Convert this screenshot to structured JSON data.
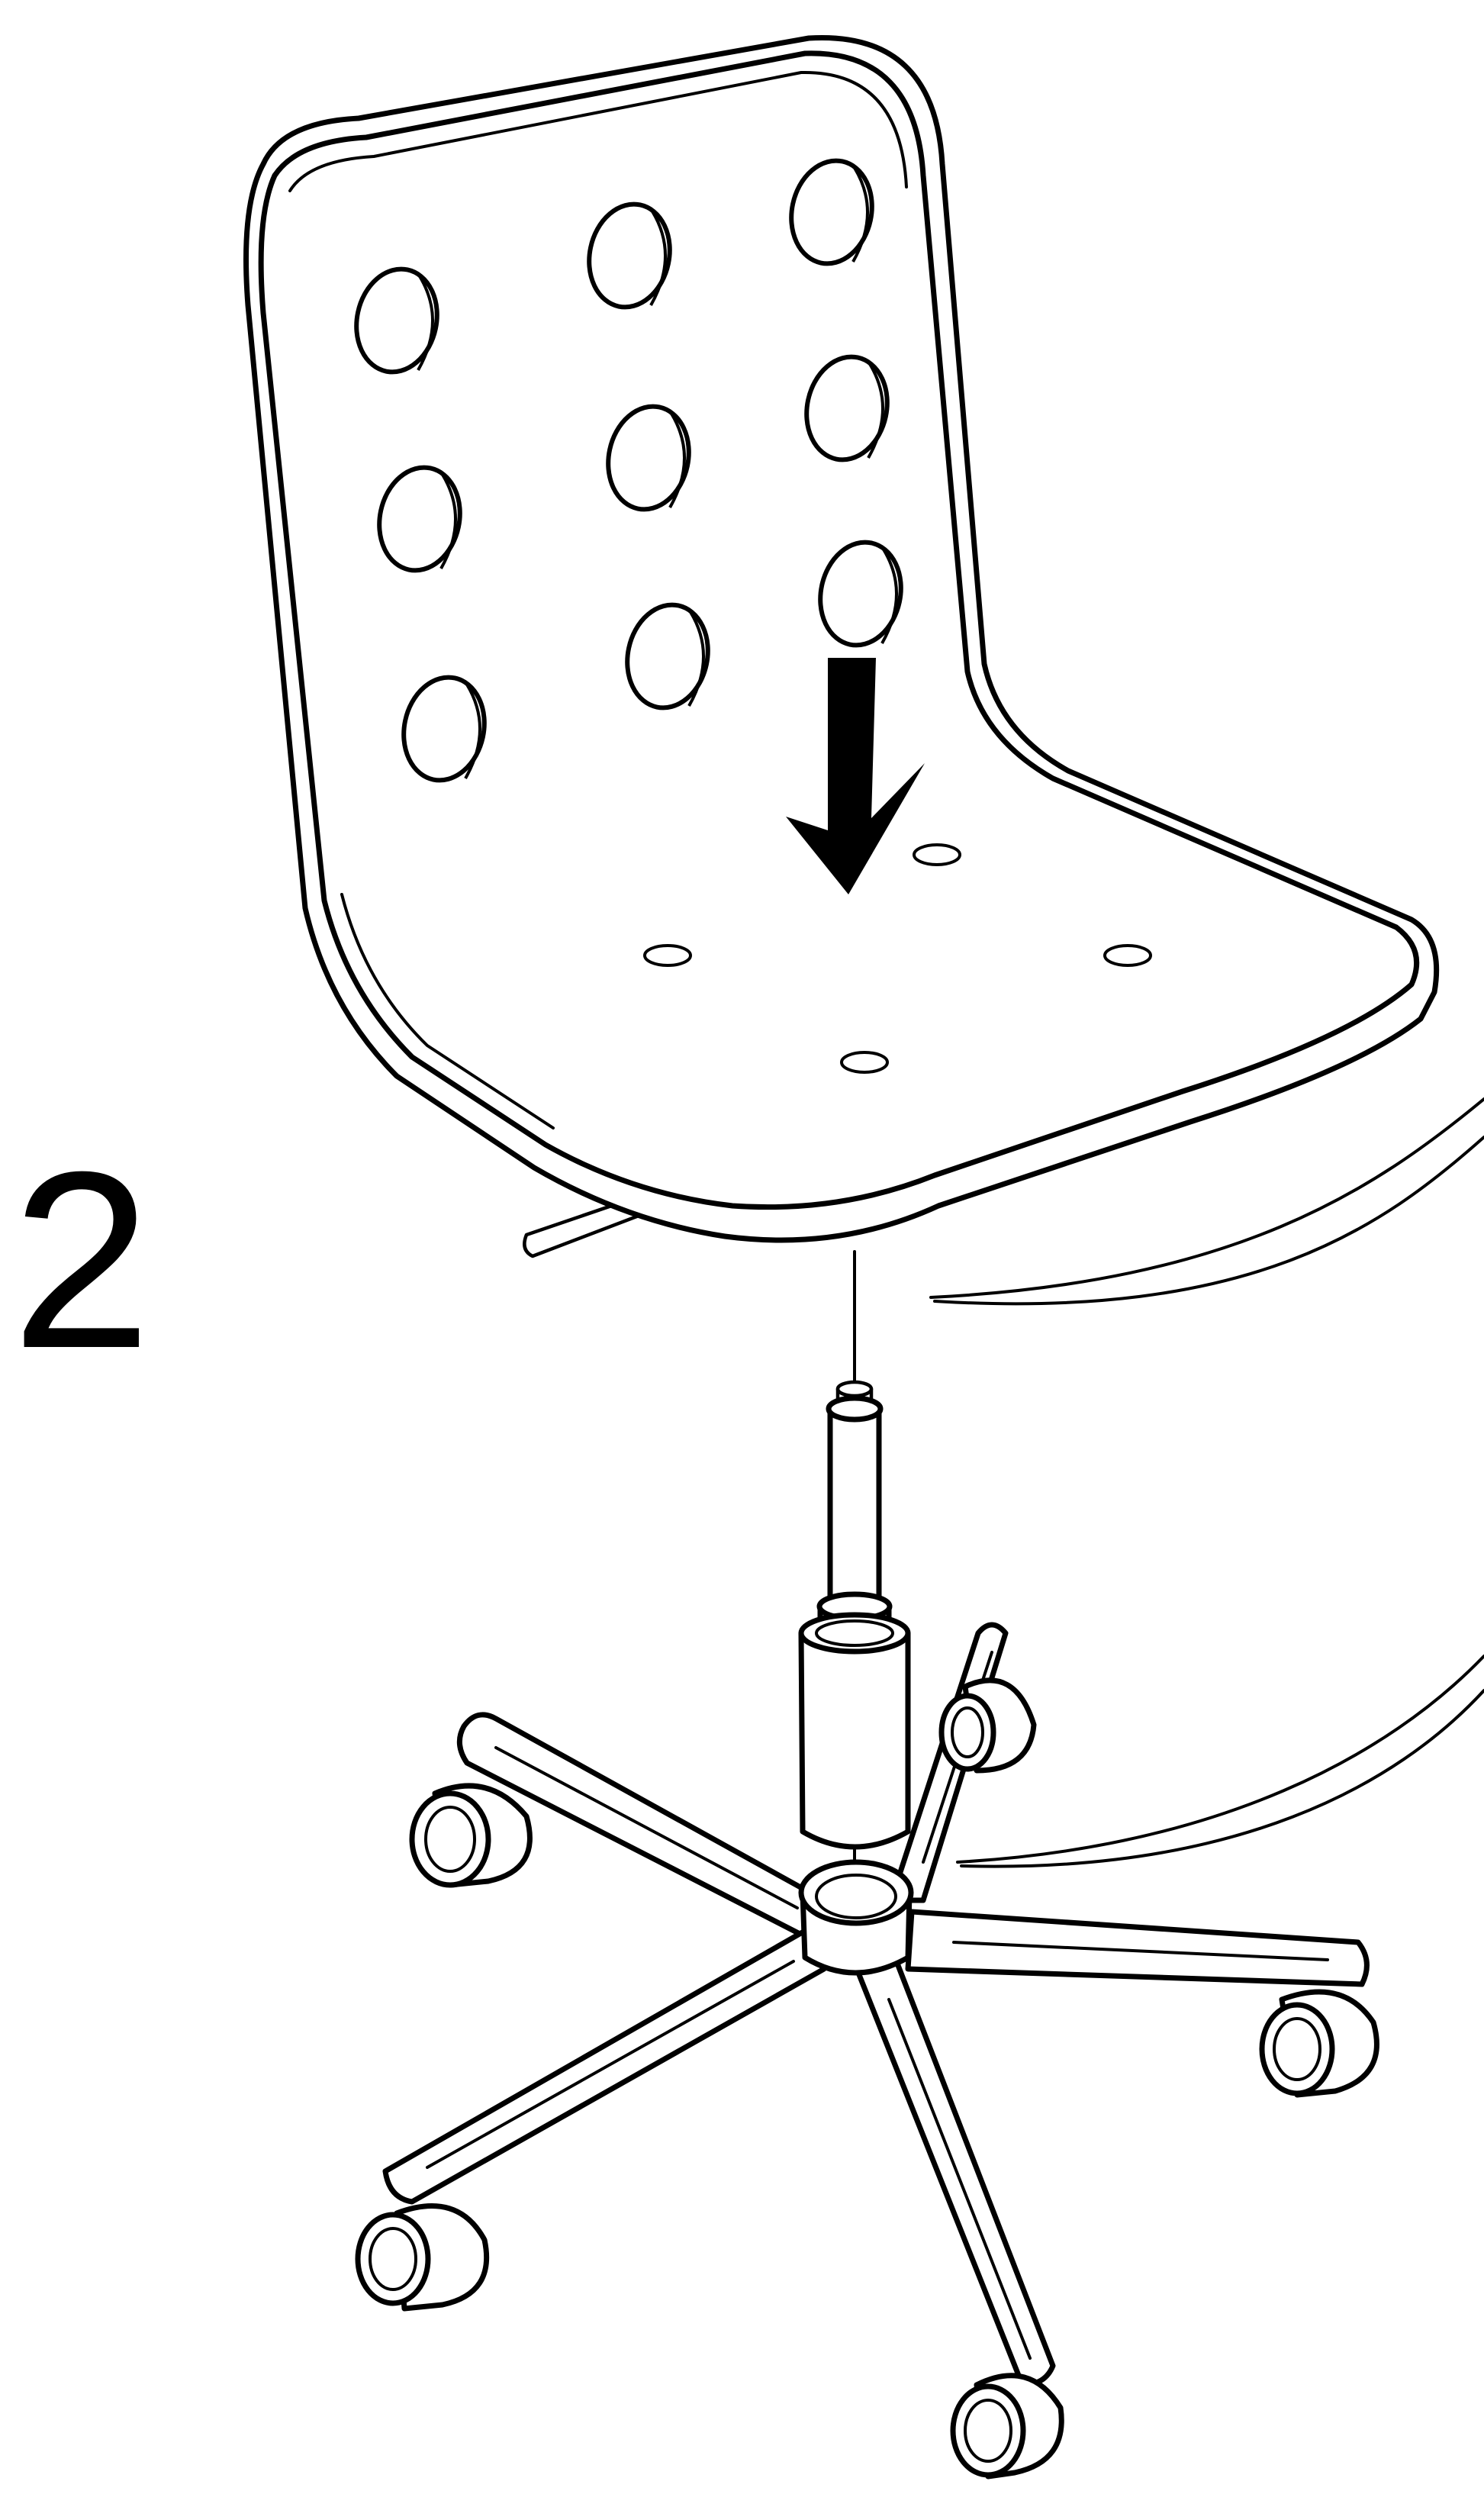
{
  "step": {
    "number": "2"
  },
  "icons": {
    "arrow": "down-arrow-icon"
  },
  "colors": {
    "line": "#000000",
    "background": "#ffffff"
  }
}
